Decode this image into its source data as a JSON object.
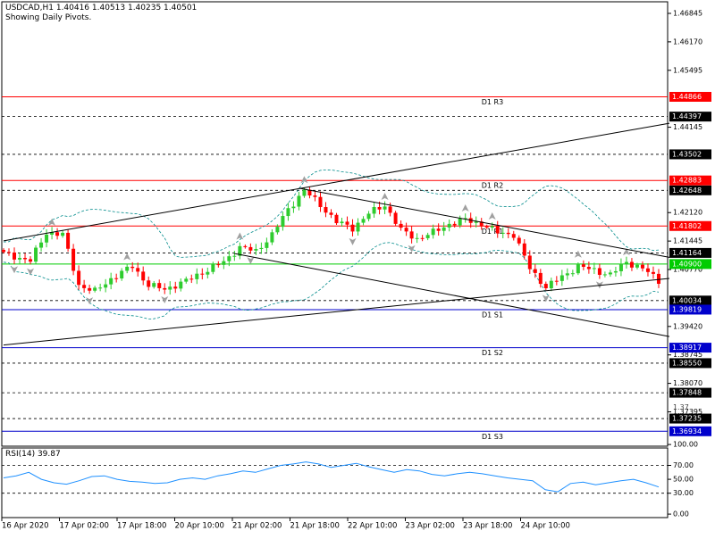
{
  "header": {
    "symbol_line": "USDCAD,H1  1.40416 1.40513 1.40235 1.40501",
    "subtitle": "Showing Daily Pivots."
  },
  "colors": {
    "background": "#ffffff",
    "frame": "#000000",
    "bull": "#2ecc2e",
    "bear": "#ff0000",
    "pivot_red": "#ff0000",
    "pivot_green": "#00cc00",
    "pivot_blue": "#0000cc",
    "dashed": "#000000",
    "bands": "#008b8b",
    "rsi_line": "#1e90ff",
    "fractal": "#a0a0a0",
    "trendline": "#000000"
  },
  "chart_data": [
    {
      "type": "candlestick",
      "symbol": "USDCAD",
      "timeframe": "H1",
      "ylim": [
        1.3658,
        1.4712
      ],
      "y_ticks": [
        "1.46845",
        "1.46170",
        "1.45495",
        "1.44145",
        "1.42120",
        "1.41445",
        "1.40770",
        "1.39420",
        "1.38745",
        "1.38070",
        "1.37395"
      ],
      "x_tick_labels": [
        "16 Apr 2020",
        "17 Apr 02:00",
        "17 Apr 18:00",
        "20 Apr 10:00",
        "21 Apr 02:00",
        "21 Apr 18:00",
        "22 Apr 10:00",
        "23 Apr 02:00",
        "23 Apr 18:00",
        "24 Apr 10:00"
      ],
      "pivot_levels": [
        {
          "label": "D1 R3",
          "value": 1.44866,
          "value_label": "1.44866",
          "color": "red"
        },
        {
          "label": "D1 R2",
          "value": 1.42883,
          "value_label": "1.42883",
          "color": "red"
        },
        {
          "label": "D1 R1",
          "value": 1.41802,
          "value_label": "1.41802",
          "color": "red"
        },
        {
          "label": "",
          "value": 1.409,
          "value_label": "1.40900",
          "color": "green"
        },
        {
          "label": "D1 S1",
          "value": 1.39819,
          "value_label": "1.39819",
          "color": "blue"
        },
        {
          "label": "D1 S2",
          "value": 1.38917,
          "value_label": "1.38917",
          "color": "blue"
        },
        {
          "label": "D1 S3",
          "value": 1.36934,
          "value_label": "1.36934",
          "color": "blue"
        }
      ],
      "dashed_levels": [
        {
          "value": 1.44397,
          "value_label": "1.44397"
        },
        {
          "value": 1.43502,
          "value_label": "1.43502"
        },
        {
          "value": 1.42648,
          "value_label": "1.42648"
        },
        {
          "value": 1.41164,
          "value_label": "1.41164"
        },
        {
          "value": 1.40034,
          "value_label": "1.40034"
        },
        {
          "value": 1.3855,
          "value_label": "1.38550"
        },
        {
          "value": 1.37848,
          "value_label": "1.37848"
        },
        {
          "value": 1.37235,
          "value_label": "1.37235"
        }
      ],
      "hidden_tick_fragments": [
        "1.37",
        "1.387"
      ],
      "price_path": [
        [
          0,
          1.4115
        ],
        [
          5,
          1.4098
        ],
        [
          8,
          1.4165
        ],
        [
          11,
          1.416
        ],
        [
          14,
          1.404
        ],
        [
          17,
          1.4025
        ],
        [
          20,
          1.4055
        ],
        [
          24,
          1.4085
        ],
        [
          27,
          1.404
        ],
        [
          30,
          1.403
        ],
        [
          34,
          1.405
        ],
        [
          37,
          1.407
        ],
        [
          41,
          1.4095
        ],
        [
          44,
          1.413
        ],
        [
          47,
          1.412
        ],
        [
          50,
          1.416
        ],
        [
          53,
          1.422
        ],
        [
          56,
          1.4265
        ],
        [
          59,
          1.423
        ],
        [
          62,
          1.419
        ],
        [
          65,
          1.4175
        ],
        [
          68,
          1.421
        ],
        [
          71,
          1.423
        ],
        [
          74,
          1.417
        ],
        [
          77,
          1.415
        ],
        [
          80,
          1.4165
        ],
        [
          83,
          1.4185
        ],
        [
          86,
          1.4195
        ],
        [
          89,
          1.4185
        ],
        [
          92,
          1.4165
        ],
        [
          95,
          1.416
        ],
        [
          98,
          1.408
        ],
        [
          101,
          1.4035
        ],
        [
          104,
          1.406
        ],
        [
          107,
          1.4085
        ],
        [
          110,
          1.4075
        ],
        [
          113,
          1.4065
        ],
        [
          116,
          1.4095
        ],
        [
          119,
          1.408
        ],
        [
          122,
          1.405
        ]
      ],
      "trendlines": [
        {
          "from": [
            0,
            1.3898
          ],
          "to": [
            124,
            1.4056
          ]
        },
        {
          "from": [
            0,
            1.4145
          ],
          "to": [
            124,
            1.4424
          ]
        },
        {
          "from": [
            55,
            1.427
          ],
          "to": [
            124,
            1.4106
          ]
        },
        {
          "from": [
            43,
            1.4115
          ],
          "to": [
            124,
            1.3918
          ]
        }
      ]
    },
    {
      "type": "line",
      "title": "RSI(14) 39.87",
      "ylim": [
        -5,
        95
      ],
      "y_ticks": [
        "100.00",
        "70.00",
        "50.00",
        "30.00",
        "0.00"
      ],
      "levels": [
        70,
        30
      ],
      "series": [
        {
          "values": [
            52,
            55,
            60,
            50,
            45,
            43,
            48,
            54,
            55,
            50,
            47,
            46,
            44,
            45,
            50,
            52,
            50,
            55,
            58,
            62,
            60,
            65,
            70,
            72,
            75,
            72,
            67,
            70,
            73,
            68,
            64,
            60,
            64,
            62,
            57,
            55,
            58,
            60,
            58,
            55,
            52,
            50,
            48,
            35,
            32,
            44,
            46,
            42,
            45,
            48,
            50,
            45,
            39
          ]
        }
      ]
    }
  ]
}
